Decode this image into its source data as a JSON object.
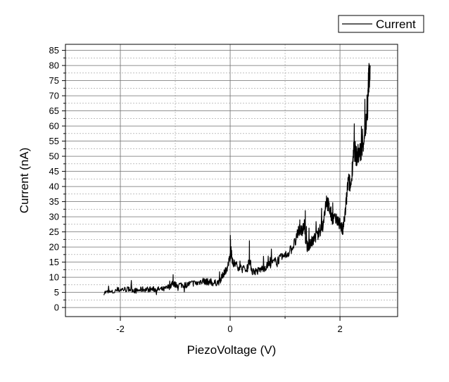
{
  "chart_data": {
    "type": "line",
    "xlabel": "PiezoVoltage (V)",
    "ylabel": "Current (nA)",
    "xlim": [
      -3.0,
      3.05
    ],
    "ylim": [
      -3,
      87
    ],
    "x_ticks": [
      -2,
      0,
      2
    ],
    "x_tick_labels": [
      "-2",
      "0",
      "2"
    ],
    "y_ticks": [
      0,
      5,
      10,
      15,
      20,
      25,
      30,
      35,
      40,
      45,
      50,
      55,
      60,
      65,
      70,
      75,
      80,
      85
    ],
    "y_tick_labels": [
      "0",
      "5",
      "10",
      "15",
      "20",
      "25",
      "30",
      "35",
      "40",
      "45",
      "50",
      "55",
      "60",
      "65",
      "70",
      "75",
      "80",
      "85"
    ],
    "grid": true,
    "legend_position": "top-right",
    "series": [
      {
        "name": "Current",
        "color": "#000000",
        "x": [
          -2.3,
          -2.15,
          -2.0,
          -1.9,
          -1.8,
          -1.7,
          -1.6,
          -1.5,
          -1.4,
          -1.3,
          -1.2,
          -1.1,
          -1.05,
          -1.0,
          -0.9,
          -0.8,
          -0.7,
          -0.6,
          -0.5,
          -0.45,
          -0.4,
          -0.3,
          -0.2,
          -0.15,
          -0.1,
          -0.05,
          0.0,
          0.02,
          0.05,
          0.1,
          0.2,
          0.3,
          0.35,
          0.4,
          0.5,
          0.6,
          0.7,
          0.8,
          0.9,
          1.0,
          1.1,
          1.2,
          1.25,
          1.3,
          1.35,
          1.4,
          1.45,
          1.5,
          1.6,
          1.7,
          1.75,
          1.8,
          1.85,
          1.9,
          2.0,
          2.05,
          2.1,
          2.15,
          2.2,
          2.25,
          2.3,
          2.35,
          2.4,
          2.45,
          2.5,
          2.52,
          2.55
        ],
        "y": [
          5,
          5,
          6,
          6,
          6,
          5.5,
          6,
          6,
          6,
          6,
          6,
          7,
          8,
          7.5,
          7.5,
          7.5,
          8,
          8,
          9,
          8.5,
          8.5,
          8,
          8.5,
          10,
          12,
          13,
          17,
          18,
          15,
          14,
          13,
          12,
          16,
          12,
          12,
          13,
          14,
          15,
          16,
          17,
          19,
          22,
          26,
          25,
          27,
          20,
          21,
          22,
          24,
          28,
          36,
          33,
          30,
          29,
          28,
          25,
          32,
          42,
          40,
          53,
          50,
          51,
          52,
          58,
          63,
          75,
          80
        ]
      }
    ]
  }
}
